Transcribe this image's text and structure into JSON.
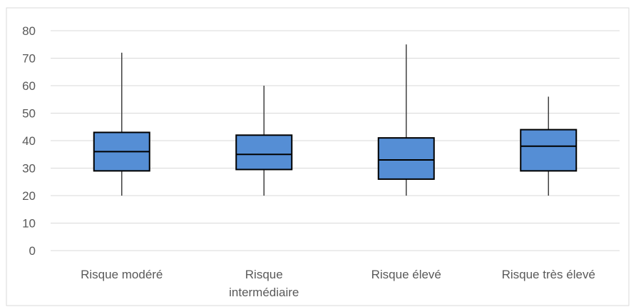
{
  "chart_data": {
    "type": "box",
    "categories": [
      "Risque modéré",
      "Risque intermédiaire",
      "Risque élevé",
      "Risque très élevé"
    ],
    "category_label_lines": [
      [
        "Risque modéré"
      ],
      [
        "Risque",
        "intermédiaire"
      ],
      [
        "Risque élevé"
      ],
      [
        "Risque très élevé"
      ]
    ],
    "boxes": [
      {
        "category": "Risque modéré",
        "min": 20,
        "q1": 29,
        "median": 36,
        "q3": 43,
        "max": 72
      },
      {
        "category": "Risque intermédiaire",
        "min": 20,
        "q1": 29.5,
        "median": 35,
        "q3": 42,
        "max": 60
      },
      {
        "category": "Risque élevé",
        "min": 20,
        "q1": 26,
        "median": 33,
        "q3": 41,
        "max": 75
      },
      {
        "category": "Risque très élevé",
        "min": 20,
        "q1": 29,
        "median": 38,
        "q3": 44,
        "max": 56
      }
    ],
    "y_ticks": [
      "0",
      "10",
      "20",
      "30",
      "40",
      "50",
      "60",
      "70",
      "80"
    ],
    "ylim": [
      0,
      80
    ],
    "grid": true,
    "title": "",
    "xlabel": "",
    "ylabel": "",
    "colors": {
      "box_fill": "#558ED5",
      "box_stroke": "#000000",
      "whisker": "#404040",
      "grid": "#D9D9D9",
      "text": "#595959",
      "frame": "#D9D9D9"
    }
  }
}
